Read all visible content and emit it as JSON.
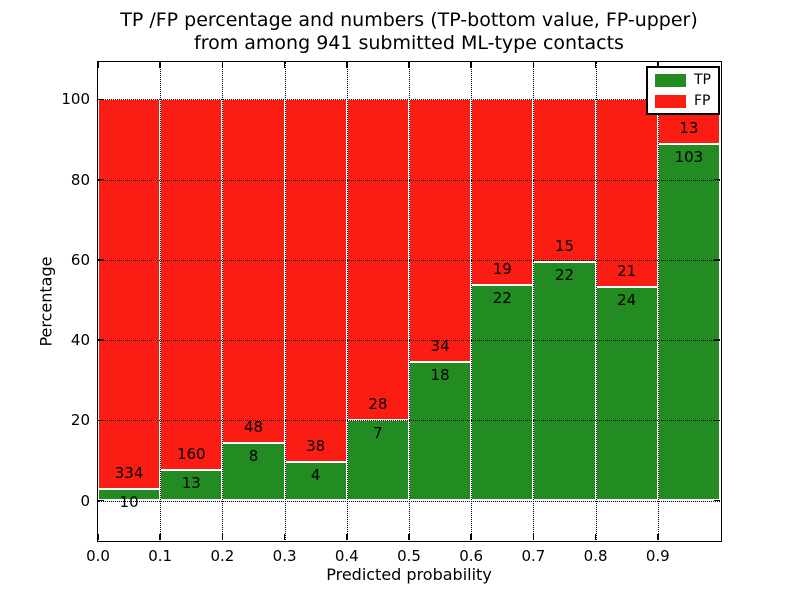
{
  "figure": {
    "title_line1": "TP /FP percentage and numbers (TP-bottom value, FP-upper)",
    "title_line2": "from among 941 submitted ML-type contacts",
    "xlabel": "Predicted probability",
    "ylabel": "Percentage"
  },
  "chart_data": {
    "type": "bar",
    "subtype": "stacked-normalized-to-100-percent",
    "title": "TP /FP percentage and numbers (TP-bottom value, FP-upper) from among 941 submitted ML-type contacts",
    "xlabel": "Predicted probability",
    "ylabel": "Percentage",
    "total_contacts": 941,
    "bins": [
      "0.0-0.1",
      "0.1-0.2",
      "0.2-0.3",
      "0.3-0.4",
      "0.4-0.5",
      "0.5-0.6",
      "0.6-0.7",
      "0.7-0.8",
      "0.8-0.9",
      "0.9-1.0"
    ],
    "series": [
      {
        "name": "TP",
        "color": "#228b22",
        "counts": [
          10,
          13,
          8,
          4,
          7,
          18,
          22,
          22,
          24,
          103
        ]
      },
      {
        "name": "FP",
        "color": "#fb1c13",
        "counts": [
          334,
          160,
          48,
          38,
          28,
          34,
          19,
          15,
          21,
          13
        ]
      }
    ],
    "tp_percent_of_bin": [
      2.9,
      7.5,
      14.3,
      9.5,
      20.0,
      34.6,
      53.7,
      59.5,
      53.3,
      88.8
    ],
    "label_note": "TP count printed just below segment boundary, FP count just above",
    "xticks": [
      "0.0",
      "0.1",
      "0.2",
      "0.3",
      "0.4",
      "0.5",
      "0.6",
      "0.7",
      "0.8",
      "0.9"
    ],
    "yticks": [
      0,
      20,
      40,
      60,
      80,
      100
    ],
    "xlim": [
      0.0,
      1.0
    ],
    "ylim": [
      -10,
      109.3
    ],
    "grid": {
      "style": "dotted",
      "color": "#000000"
    },
    "bar_edge_color": "#ffffff",
    "legend": {
      "position": "upper right",
      "entries": [
        "TP",
        "FP"
      ]
    }
  }
}
